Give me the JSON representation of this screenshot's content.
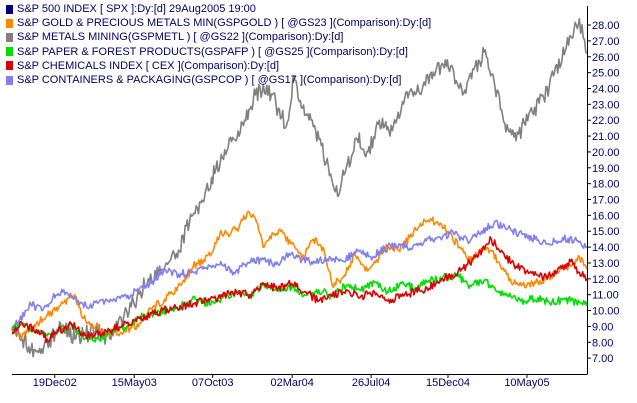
{
  "header": {
    "swatch_color": "#000080",
    "label": "S&P 500 INDEX [ SPX ]:Dy:[d]  29Aug2005 19:00"
  },
  "chart_data": {
    "type": "line",
    "title": "",
    "ylim": [
      6.0,
      29.2
    ],
    "y_ticks": [
      "7.00",
      "8.00",
      "9.00",
      "10.00",
      "11.00",
      "12.00",
      "13.00",
      "14.00",
      "15.00",
      "16.00",
      "17.00",
      "18.00",
      "19.00",
      "20.00",
      "21.00",
      "22.00",
      "23.00",
      "24.00",
      "25.00",
      "26.00",
      "27.00",
      "28.00"
    ],
    "x_ticks": [
      "19Dec02",
      "15May03",
      "07Oct03",
      "02Mar04",
      "26Jul04",
      "15Dec04",
      "10May05"
    ],
    "x_range": [
      "2002-10-01",
      "2005-08-29"
    ],
    "grid": false,
    "legend_position": "top-left",
    "series": [
      {
        "name": "S&P GOLD & PRECIOUS METALS MIN(GSPGOLD ) [ @GS23 ](Comparison):Dy:[d]",
        "color": "#ff8800",
        "x": [
          "2002-10-01",
          "2002-10-20",
          "2002-11-15",
          "2002-12-05",
          "2002-12-20",
          "2003-01-05",
          "2003-01-25",
          "2003-02-10",
          "2003-03-05",
          "2003-03-20",
          "2003-04-15",
          "2003-05-10",
          "2003-05-25",
          "2003-06-15",
          "2003-07-10",
          "2003-08-10",
          "2003-09-01",
          "2003-09-20",
          "2003-10-05",
          "2003-10-20",
          "2003-11-10",
          "2003-11-25",
          "2003-12-10",
          "2003-12-25",
          "2004-01-10",
          "2004-01-25",
          "2004-02-10",
          "2004-03-01",
          "2004-03-20",
          "2004-04-10",
          "2004-04-30",
          "2004-05-15",
          "2004-06-05",
          "2004-06-25",
          "2004-07-15",
          "2004-08-05",
          "2004-08-25",
          "2004-09-15",
          "2004-10-05",
          "2004-10-25",
          "2004-11-15",
          "2004-12-01",
          "2004-12-15",
          "2005-01-05",
          "2005-01-25",
          "2005-02-15",
          "2005-03-05",
          "2005-03-25",
          "2005-04-15",
          "2005-05-10",
          "2005-05-30",
          "2005-06-20",
          "2005-07-10",
          "2005-07-30",
          "2005-08-15",
          "2005-08-29"
        ],
        "y": [
          8.9,
          8.4,
          9.2,
          9.7,
          10.0,
          10.5,
          11.0,
          9.5,
          9.0,
          8.6,
          8.5,
          8.9,
          9.2,
          10.1,
          10.7,
          11.6,
          12.8,
          13.2,
          13.6,
          14.8,
          14.9,
          15.3,
          16.2,
          15.8,
          14.0,
          14.9,
          15.0,
          14.2,
          13.3,
          14.5,
          13.8,
          11.6,
          12.1,
          13.5,
          12.5,
          13.2,
          14.0,
          13.8,
          14.6,
          15.5,
          15.7,
          15.5,
          15.0,
          14.0,
          13.1,
          13.9,
          13.8,
          12.6,
          11.7,
          11.6,
          11.8,
          12.1,
          12.6,
          12.8,
          13.4,
          12.6
        ]
      },
      {
        "name": "S&P METALS MINING(GSPMETL ) [ @GS22 ](Comparison):Dy:[d]",
        "color": "#808080",
        "x": [
          "2002-10-01",
          "2002-10-20",
          "2002-11-15",
          "2002-12-05",
          "2002-12-20",
          "2003-01-05",
          "2003-01-25",
          "2003-02-10",
          "2003-03-05",
          "2003-03-20",
          "2003-04-10",
          "2003-05-01",
          "2003-05-20",
          "2003-06-10",
          "2003-07-05",
          "2003-08-01",
          "2003-08-25",
          "2003-09-15",
          "2003-10-05",
          "2003-10-25",
          "2003-11-15",
          "2003-12-05",
          "2003-12-25",
          "2004-01-15",
          "2004-02-01",
          "2004-02-20",
          "2004-03-05",
          "2004-03-25",
          "2004-04-10",
          "2004-04-25",
          "2004-05-10",
          "2004-05-25",
          "2004-06-10",
          "2004-06-30",
          "2004-07-20",
          "2004-08-10",
          "2004-08-30",
          "2004-09-20",
          "2004-10-10",
          "2004-10-30",
          "2004-11-20",
          "2004-12-10",
          "2004-12-30",
          "2005-01-15",
          "2005-02-01",
          "2005-02-20",
          "2005-03-10",
          "2005-03-30",
          "2005-04-20",
          "2005-05-05",
          "2005-05-20",
          "2005-06-10",
          "2005-06-30",
          "2005-07-20",
          "2005-08-05",
          "2005-08-15",
          "2005-08-22",
          "2005-08-29"
        ],
        "y": [
          8.9,
          8.2,
          7.4,
          8.0,
          8.5,
          9.0,
          8.2,
          8.4,
          8.8,
          8.3,
          9.0,
          10.0,
          10.8,
          12.0,
          12.6,
          13.6,
          15.5,
          16.8,
          18.4,
          19.6,
          20.8,
          22.0,
          23.6,
          24.2,
          23.0,
          21.6,
          24.8,
          22.3,
          21.6,
          20.4,
          18.5,
          17.2,
          19.0,
          20.8,
          20.0,
          22.0,
          21.0,
          22.8,
          23.8,
          24.2,
          24.8,
          25.8,
          24.5,
          23.9,
          25.2,
          26.3,
          24.5,
          21.8,
          20.7,
          21.8,
          22.5,
          23.4,
          25.0,
          26.4,
          27.7,
          28.4,
          27.2,
          26.2
        ]
      },
      {
        "name": "S&P PAPER & FOREST PRODUCTS(GSPAFP ) [ @GS25 ](Comparison):Dy:[d]",
        "color": "#00e000",
        "x": [
          "2002-10-01",
          "2002-10-20",
          "2002-11-15",
          "2002-12-05",
          "2002-12-25",
          "2003-01-20",
          "2003-02-15",
          "2003-03-10",
          "2003-04-05",
          "2003-05-01",
          "2003-05-25",
          "2003-06-20",
          "2003-07-15",
          "2003-08-10",
          "2003-09-05",
          "2003-10-01",
          "2003-10-25",
          "2003-11-20",
          "2003-12-15",
          "2004-01-10",
          "2004-02-05",
          "2004-03-01",
          "2004-03-25",
          "2004-04-20",
          "2004-05-15",
          "2004-06-10",
          "2004-07-05",
          "2004-08-01",
          "2004-08-25",
          "2004-09-20",
          "2004-10-15",
          "2004-11-10",
          "2004-12-05",
          "2005-01-01",
          "2005-01-25",
          "2005-02-20",
          "2005-03-15",
          "2005-04-10",
          "2005-05-05",
          "2005-05-30",
          "2005-06-25",
          "2005-07-20",
          "2005-08-15",
          "2005-08-29"
        ],
        "y": [
          8.8,
          9.1,
          8.7,
          8.4,
          8.8,
          9.0,
          8.3,
          8.2,
          8.7,
          9.0,
          9.6,
          9.8,
          10.0,
          10.3,
          10.7,
          10.4,
          10.8,
          11.2,
          10.9,
          11.7,
          11.2,
          11.5,
          11.0,
          11.3,
          10.9,
          11.6,
          11.3,
          11.8,
          11.2,
          11.7,
          11.4,
          11.9,
          12.1,
          12.2,
          11.6,
          11.9,
          11.2,
          10.9,
          10.6,
          10.8,
          10.5,
          10.7,
          10.5,
          10.3
        ]
      },
      {
        "name": "S&P CHEMICALS INDEX [ CEX ](Comparison):Dy:[d]",
        "color": "#dd0000",
        "x": [
          "2002-10-01",
          "2002-10-20",
          "2002-11-15",
          "2002-12-05",
          "2002-12-25",
          "2003-01-20",
          "2003-02-15",
          "2003-03-10",
          "2003-04-05",
          "2003-05-01",
          "2003-05-25",
          "2003-06-20",
          "2003-07-15",
          "2003-08-10",
          "2003-09-05",
          "2003-10-01",
          "2003-10-25",
          "2003-11-20",
          "2003-12-15",
          "2004-01-10",
          "2004-02-05",
          "2004-03-01",
          "2004-03-25",
          "2004-04-20",
          "2004-05-15",
          "2004-06-10",
          "2004-07-05",
          "2004-08-01",
          "2004-08-25",
          "2004-09-20",
          "2004-10-15",
          "2004-11-10",
          "2004-12-05",
          "2004-12-30",
          "2005-01-20",
          "2005-02-10",
          "2005-03-05",
          "2005-03-30",
          "2005-04-20",
          "2005-05-15",
          "2005-06-10",
          "2005-07-05",
          "2005-07-30",
          "2005-08-15",
          "2005-08-29"
        ],
        "y": [
          8.6,
          9.2,
          8.8,
          8.2,
          8.7,
          9.1,
          8.4,
          8.5,
          8.8,
          9.2,
          9.5,
          9.8,
          10.1,
          10.2,
          10.5,
          10.6,
          10.9,
          11.2,
          11.0,
          11.6,
          11.4,
          11.7,
          11.2,
          10.6,
          10.9,
          11.3,
          10.8,
          11.2,
          10.6,
          10.9,
          11.2,
          11.4,
          12.0,
          12.3,
          12.9,
          13.6,
          14.5,
          13.4,
          12.8,
          12.4,
          12.1,
          12.5,
          13.1,
          12.4,
          12.0
        ]
      },
      {
        "name": "S&P CONTAINERS & PACKAGING(GSPCOP ) [ @GS17 ](Comparison):Dy:[d]",
        "color": "#8080ee",
        "x": [
          "2002-10-01",
          "2002-10-15",
          "2002-11-05",
          "2002-11-25",
          "2002-12-15",
          "2003-01-05",
          "2003-01-25",
          "2003-02-15",
          "2003-03-10",
          "2003-04-05",
          "2003-05-01",
          "2003-05-25",
          "2003-06-15",
          "2003-07-10",
          "2003-08-05",
          "2003-09-01",
          "2003-09-25",
          "2003-10-20",
          "2003-11-15",
          "2003-12-10",
          "2004-01-05",
          "2004-02-01",
          "2004-02-25",
          "2004-03-20",
          "2004-04-15",
          "2004-05-10",
          "2004-06-05",
          "2004-07-01",
          "2004-07-25",
          "2004-08-20",
          "2004-09-15",
          "2004-10-10",
          "2004-11-05",
          "2004-12-01",
          "2004-12-25",
          "2005-01-20",
          "2005-02-15",
          "2005-03-10",
          "2005-04-05",
          "2005-05-01",
          "2005-05-25",
          "2005-06-20",
          "2005-07-15",
          "2005-08-10",
          "2005-08-29"
        ],
        "y": [
          9.0,
          9.4,
          10.4,
          10.0,
          10.8,
          11.3,
          10.8,
          10.3,
          10.5,
          10.6,
          10.8,
          11.4,
          11.7,
          12.6,
          12.3,
          12.4,
          12.7,
          12.9,
          12.4,
          13.0,
          13.2,
          12.9,
          13.6,
          13.2,
          13.0,
          13.4,
          13.1,
          13.8,
          13.4,
          13.9,
          14.2,
          13.9,
          14.4,
          14.6,
          14.9,
          14.4,
          15.0,
          15.5,
          15.2,
          14.8,
          14.5,
          14.2,
          14.6,
          14.4,
          14.0
        ]
      }
    ]
  }
}
